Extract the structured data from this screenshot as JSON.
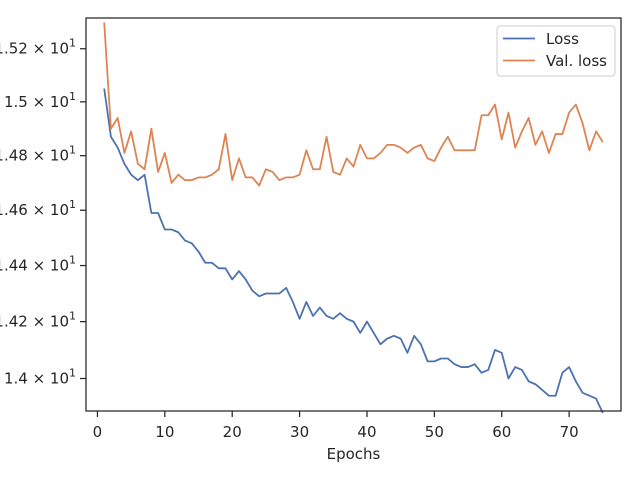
{
  "chart_data": {
    "type": "line",
    "title": "",
    "xlabel": "Epochs",
    "ylabel": "",
    "xlim": [
      -1.7,
      77.7
    ],
    "ylim": [
      13.887,
      15.317
    ],
    "yscale": "log",
    "xticks": [
      0,
      10,
      20,
      30,
      40,
      50,
      60,
      70
    ],
    "xtick_labels": [
      "0",
      "10",
      "20",
      "30",
      "40",
      "50",
      "60",
      "70"
    ],
    "yticks": [
      14.0,
      14.2,
      14.4,
      14.6,
      14.8,
      15.0,
      15.2
    ],
    "ytick_labels": [
      {
        "mantissa": "1.4",
        "base": "10",
        "exp": "1"
      },
      {
        "mantissa": "1.42",
        "base": "10",
        "exp": "1"
      },
      {
        "mantissa": "1.44",
        "base": "10",
        "exp": "1"
      },
      {
        "mantissa": "1.46",
        "base": "10",
        "exp": "1"
      },
      {
        "mantissa": "1.48",
        "base": "10",
        "exp": "1"
      },
      {
        "mantissa": "1.5",
        "base": "10",
        "exp": "1"
      },
      {
        "mantissa": "1.52",
        "base": "10",
        "exp": "1"
      }
    ],
    "grid": false,
    "legend_position": "top-right",
    "x": [
      1,
      2,
      3,
      4,
      5,
      6,
      7,
      8,
      9,
      10,
      11,
      12,
      13,
      14,
      15,
      16,
      17,
      18,
      19,
      20,
      21,
      22,
      23,
      24,
      25,
      26,
      27,
      28,
      29,
      30,
      31,
      32,
      33,
      34,
      35,
      36,
      37,
      38,
      39,
      40,
      41,
      42,
      43,
      44,
      45,
      46,
      47,
      48,
      49,
      50,
      51,
      52,
      53,
      54,
      55,
      56,
      57,
      58,
      59,
      60,
      61,
      62,
      63,
      64,
      65,
      66,
      67,
      68,
      69,
      70,
      71,
      72,
      73,
      74,
      75
    ],
    "series": [
      {
        "name": "Loss",
        "color": "#4c72b0",
        "values": [
          15.05,
          14.87,
          14.83,
          14.77,
          14.73,
          14.71,
          14.73,
          14.59,
          14.59,
          14.53,
          14.53,
          14.52,
          14.49,
          14.48,
          14.45,
          14.41,
          14.41,
          14.39,
          14.39,
          14.35,
          14.38,
          14.35,
          14.31,
          14.29,
          14.3,
          14.3,
          14.3,
          14.32,
          14.27,
          14.21,
          14.27,
          14.22,
          14.25,
          14.22,
          14.21,
          14.23,
          14.21,
          14.2,
          14.16,
          14.2,
          14.16,
          14.12,
          14.14,
          14.15,
          14.14,
          14.09,
          14.15,
          14.12,
          14.06,
          14.06,
          14.07,
          14.07,
          14.05,
          14.04,
          14.04,
          14.05,
          14.02,
          14.03,
          14.1,
          14.09,
          14.0,
          14.04,
          14.03,
          13.99,
          13.98,
          13.96,
          13.94,
          13.94,
          14.02,
          14.04,
          13.99,
          13.95,
          13.94,
          13.93,
          13.88
        ]
      },
      {
        "name": "Val. loss",
        "color": "#dd8452",
        "values": [
          15.3,
          14.9,
          14.94,
          14.81,
          14.89,
          14.77,
          14.75,
          14.9,
          14.74,
          14.81,
          14.7,
          14.73,
          14.71,
          14.71,
          14.72,
          14.72,
          14.73,
          14.75,
          14.88,
          14.71,
          14.79,
          14.72,
          14.72,
          14.69,
          14.75,
          14.74,
          14.71,
          14.72,
          14.72,
          14.73,
          14.82,
          14.75,
          14.75,
          14.87,
          14.74,
          14.73,
          14.79,
          14.76,
          14.84,
          14.79,
          14.79,
          14.81,
          14.84,
          14.84,
          14.83,
          14.81,
          14.83,
          14.84,
          14.79,
          14.78,
          14.83,
          14.87,
          14.82,
          14.82,
          14.82,
          14.82,
          14.95,
          14.95,
          14.99,
          14.86,
          14.96,
          14.83,
          14.89,
          14.94,
          14.84,
          14.89,
          14.81,
          14.88,
          14.88,
          14.96,
          14.99,
          14.92,
          14.82,
          14.89,
          14.85
        ]
      }
    ]
  }
}
